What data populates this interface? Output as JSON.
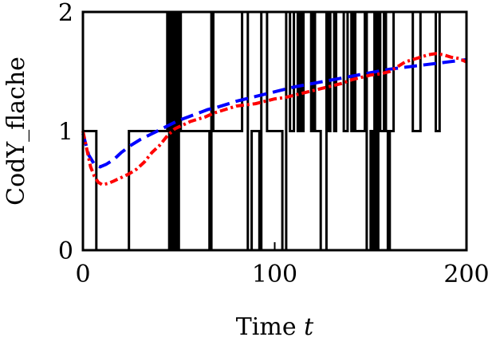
{
  "chart_data": {
    "type": "line",
    "xlabel": "Time",
    "xlabel_var": "t",
    "ylabel": "CodY_flache",
    "xlim": [
      0,
      200
    ],
    "ylim": [
      0,
      2
    ],
    "x_ticks": [
      0,
      100,
      200
    ],
    "x_tick_labels": [
      "0",
      "100",
      "200"
    ],
    "y_ticks": [
      0,
      1,
      2
    ],
    "y_tick_labels": [
      "0",
      "1",
      "2"
    ],
    "grid": false,
    "legend": "none",
    "series": [
      {
        "style": "solid",
        "color": "#000000",
        "kind": "step",
        "points": [
          [
            0,
            2
          ],
          [
            0,
            1
          ],
          [
            7,
            1
          ],
          [
            7,
            0
          ],
          [
            24,
            0
          ],
          [
            24,
            1
          ],
          [
            44,
            1
          ],
          [
            44,
            2
          ],
          [
            45,
            2
          ],
          [
            45,
            0
          ],
          [
            46,
            0
          ],
          [
            46,
            2
          ],
          [
            47,
            2
          ],
          [
            47,
            0
          ],
          [
            48,
            0
          ],
          [
            48,
            2
          ],
          [
            49,
            2
          ],
          [
            49,
            0
          ],
          [
            50,
            0
          ],
          [
            50,
            2
          ],
          [
            51,
            2
          ],
          [
            51,
            1
          ],
          [
            66,
            1
          ],
          [
            66,
            0
          ],
          [
            67,
            0
          ],
          [
            67,
            2
          ],
          [
            68,
            2
          ],
          [
            68,
            1
          ],
          [
            83,
            1
          ],
          [
            83,
            2
          ],
          [
            86,
            2
          ],
          [
            86,
            0
          ],
          [
            88,
            0
          ],
          [
            88,
            1
          ],
          [
            92,
            1
          ],
          [
            92,
            0
          ],
          [
            93,
            0
          ],
          [
            93,
            2
          ],
          [
            96,
            2
          ],
          [
            96,
            1
          ],
          [
            104,
            1
          ],
          [
            104,
            0
          ],
          [
            106,
            0
          ],
          [
            106,
            2
          ],
          [
            108,
            2
          ],
          [
            108,
            1
          ],
          [
            110,
            1
          ],
          [
            110,
            2
          ],
          [
            112,
            2
          ],
          [
            112,
            1
          ],
          [
            113,
            1
          ],
          [
            113,
            2
          ],
          [
            114,
            2
          ],
          [
            114,
            1
          ],
          [
            115,
            1
          ],
          [
            115,
            2
          ],
          [
            119,
            2
          ],
          [
            119,
            1
          ],
          [
            120,
            1
          ],
          [
            120,
            2
          ],
          [
            121,
            2
          ],
          [
            121,
            1
          ],
          [
            124,
            1
          ],
          [
            124,
            0
          ],
          [
            127,
            0
          ],
          [
            127,
            2
          ],
          [
            128,
            2
          ],
          [
            128,
            1
          ],
          [
            129,
            1
          ],
          [
            129,
            2
          ],
          [
            131,
            2
          ],
          [
            131,
            1
          ],
          [
            132,
            1
          ],
          [
            132,
            2
          ],
          [
            136,
            2
          ],
          [
            136,
            1
          ],
          [
            138,
            1
          ],
          [
            138,
            2
          ],
          [
            140,
            2
          ],
          [
            140,
            1
          ],
          [
            141,
            1
          ],
          [
            141,
            2
          ],
          [
            142,
            2
          ],
          [
            142,
            1
          ],
          [
            147,
            1
          ],
          [
            147,
            2
          ],
          [
            148,
            2
          ],
          [
            148,
            0
          ],
          [
            150,
            0
          ],
          [
            150,
            1
          ],
          [
            151,
            1
          ],
          [
            151,
            0
          ],
          [
            152,
            0
          ],
          [
            152,
            2
          ],
          [
            153,
            2
          ],
          [
            153,
            0
          ],
          [
            154,
            0
          ],
          [
            154,
            2
          ],
          [
            155,
            2
          ],
          [
            155,
            1
          ],
          [
            157,
            1
          ],
          [
            157,
            2
          ],
          [
            158,
            2
          ],
          [
            158,
            1
          ],
          [
            159,
            1
          ],
          [
            159,
            0
          ],
          [
            160,
            0
          ],
          [
            160,
            1
          ],
          [
            162,
            1
          ],
          [
            162,
            2
          ],
          [
            172,
            2
          ],
          [
            172,
            1
          ],
          [
            176,
            1
          ],
          [
            176,
            2
          ],
          [
            184,
            2
          ],
          [
            184,
            1
          ],
          [
            186,
            1
          ],
          [
            186,
            2
          ],
          [
            200,
            2
          ]
        ]
      },
      {
        "style": "dashed",
        "color": "#0000ff",
        "kind": "line",
        "points": [
          [
            0,
            0.98
          ],
          [
            3,
            0.8
          ],
          [
            6,
            0.72
          ],
          [
            9,
            0.7
          ],
          [
            12,
            0.72
          ],
          [
            16,
            0.76
          ],
          [
            20,
            0.82
          ],
          [
            25,
            0.88
          ],
          [
            30,
            0.93
          ],
          [
            35,
            0.97
          ],
          [
            40,
            1.01
          ],
          [
            45,
            1.05
          ],
          [
            50,
            1.09
          ],
          [
            55,
            1.12
          ],
          [
            60,
            1.15
          ],
          [
            65,
            1.18
          ],
          [
            70,
            1.2
          ],
          [
            80,
            1.25
          ],
          [
            90,
            1.29
          ],
          [
            100,
            1.33
          ],
          [
            110,
            1.37
          ],
          [
            120,
            1.4
          ],
          [
            130,
            1.43
          ],
          [
            140,
            1.46
          ],
          [
            150,
            1.49
          ],
          [
            160,
            1.52
          ],
          [
            170,
            1.54
          ],
          [
            180,
            1.56
          ],
          [
            190,
            1.58
          ],
          [
            200,
            1.6
          ]
        ]
      },
      {
        "style": "dashdot",
        "color": "#ff0000",
        "kind": "line",
        "points": [
          [
            0,
            1.0
          ],
          [
            2,
            0.85
          ],
          [
            4,
            0.7
          ],
          [
            6,
            0.62
          ],
          [
            8,
            0.57
          ],
          [
            10,
            0.55
          ],
          [
            13,
            0.56
          ],
          [
            16,
            0.58
          ],
          [
            20,
            0.61
          ],
          [
            24,
            0.64
          ],
          [
            28,
            0.68
          ],
          [
            32,
            0.74
          ],
          [
            36,
            0.82
          ],
          [
            40,
            0.88
          ],
          [
            44,
            0.96
          ],
          [
            48,
            1.02
          ],
          [
            52,
            1.05
          ],
          [
            56,
            1.08
          ],
          [
            60,
            1.1
          ],
          [
            64,
            1.12
          ],
          [
            68,
            1.15
          ],
          [
            72,
            1.17
          ],
          [
            76,
            1.19
          ],
          [
            80,
            1.21
          ],
          [
            85,
            1.22
          ],
          [
            90,
            1.23
          ],
          [
            95,
            1.25
          ],
          [
            100,
            1.27
          ],
          [
            105,
            1.28
          ],
          [
            110,
            1.3
          ],
          [
            115,
            1.32
          ],
          [
            120,
            1.34
          ],
          [
            125,
            1.36
          ],
          [
            130,
            1.38
          ],
          [
            135,
            1.4
          ],
          [
            140,
            1.43
          ],
          [
            145,
            1.45
          ],
          [
            150,
            1.47
          ],
          [
            155,
            1.48
          ],
          [
            160,
            1.5
          ],
          [
            165,
            1.55
          ],
          [
            168,
            1.58
          ],
          [
            172,
            1.6
          ],
          [
            176,
            1.62
          ],
          [
            180,
            1.64
          ],
          [
            184,
            1.65
          ],
          [
            188,
            1.64
          ],
          [
            192,
            1.62
          ],
          [
            196,
            1.61
          ],
          [
            200,
            1.58
          ]
        ]
      }
    ]
  }
}
